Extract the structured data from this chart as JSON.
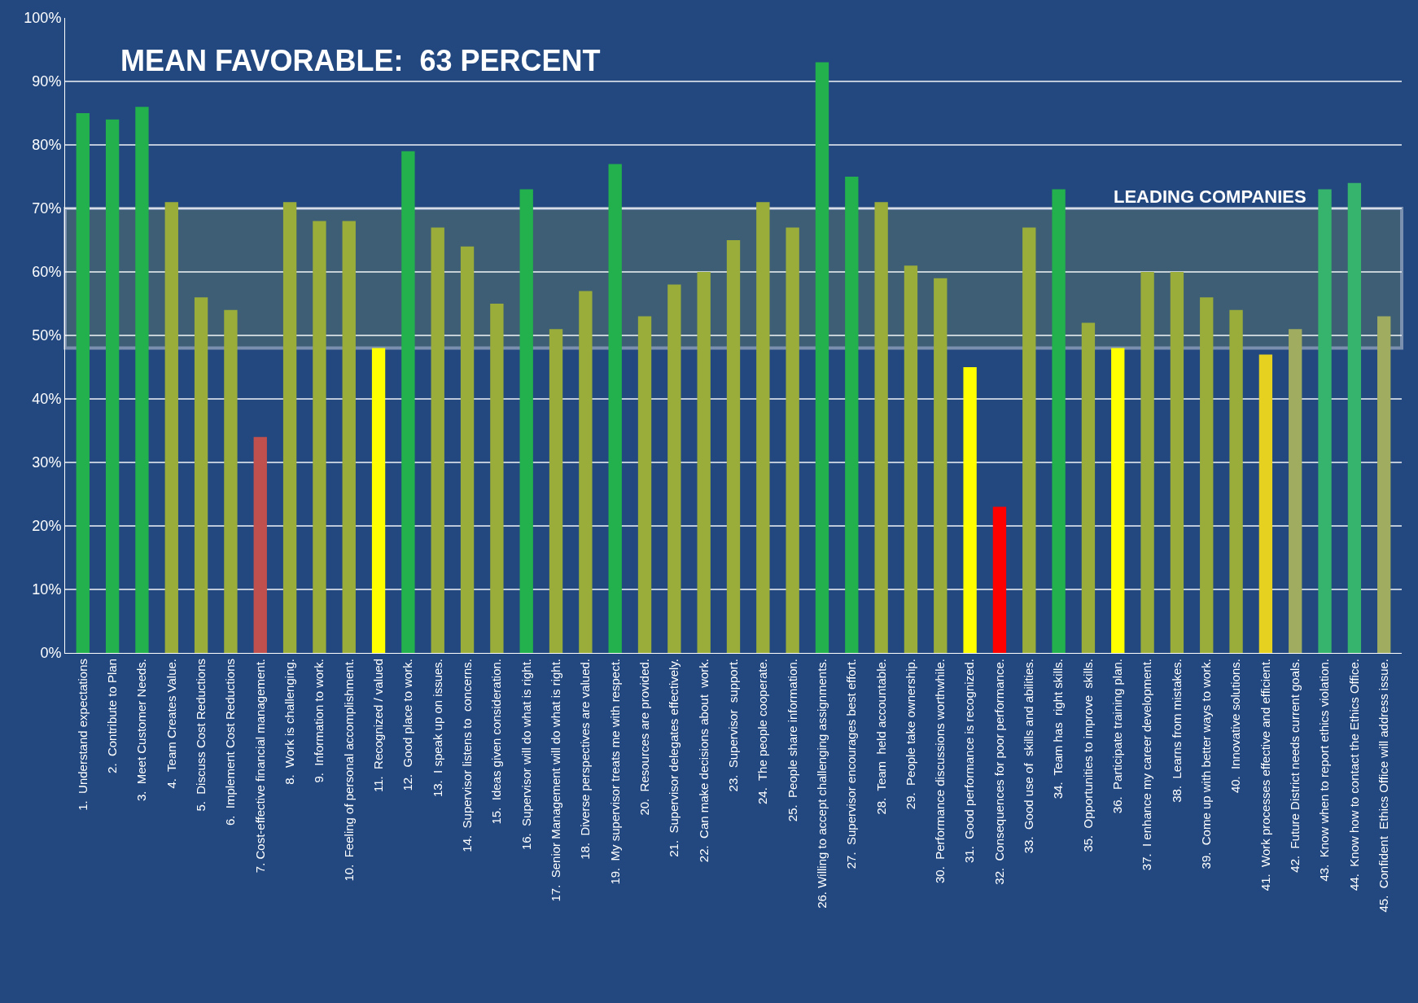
{
  "chart_data": {
    "type": "bar",
    "title": "MEAN FAVORABLE:  63 PERCENT",
    "categories": [
      "1.  Understand expectations",
      "2.  Contribute to Plan",
      "3.  Meet Customer Needs.",
      "4.  Team Creates Value.",
      "5.  Discuss Cost Reductions",
      "6.  Implement Cost Reductions",
      "7. Cost-effective financial management.",
      "8.  Work is challenging.",
      "9.  Information to work.",
      "10.  Feeling of personal accomplishment.",
      "11.  Recognized / valued",
      "12.  Good place to work.",
      "13.  I speak up on issues.",
      "14.  Supervisor listens to  concerns.",
      "15.  Ideas given consideration.",
      "16.  Supervisor will do what is right.",
      "17.  Senior Management will do what is right.",
      "18.  Diverse perspectives are valued.",
      "19.  My supervisor treats me with respect.",
      "20.  Resources are provided.",
      "21.  Supervisor delegates effectively.",
      "22.  Can make decisions about  work.",
      "23.  Supervisor  support.",
      "24.  The people cooperate.",
      "25.  People share information.",
      "26. Willing to accept challenging assignments.",
      "27.  Supervisor encourages best effort.",
      "28.  Team  held accountable.",
      "29.  People take ownership.",
      "30.  Performance discussions worthwhile.",
      "31.  Good performance is recognized.",
      "32.  Consequences for poor performance.",
      "33.  Good use of  skills and abilities.",
      "34.  Team has  right skills.",
      "35.  Opportunities to improve  skills.",
      "36.  Participate training plan.",
      "37.  I enhance my career development.",
      "38.  Learns from mistakes.",
      "39.  Come up with better ways to work.",
      "40.  Innovative solutions.",
      "41.  Work processes effective and efficient.",
      "42.  Future District needs current goals.",
      "43.  Know when to report ethics violation.",
      "44.  Know how to contact the Ethics Office.",
      "45.  Confident  Ethics Office will address issue."
    ],
    "values": [
      85,
      84,
      86,
      71,
      56,
      54,
      34,
      71,
      68,
      68,
      48,
      79,
      67,
      64,
      55,
      73,
      51,
      57,
      77,
      53,
      58,
      60,
      65,
      71,
      67,
      93,
      75,
      71,
      61,
      59,
      45,
      23,
      67,
      73,
      52,
      48,
      60,
      60,
      56,
      54,
      47,
      51,
      73,
      74,
      53
    ],
    "colors": [
      "#22b14c",
      "#22b14c",
      "#22b14c",
      "#9aad3a",
      "#9aad3a",
      "#9aad3a",
      "#c0504d",
      "#9aad3a",
      "#9aad3a",
      "#9aad3a",
      "#ffff00",
      "#22b14c",
      "#9aad3a",
      "#9aad3a",
      "#9aad3a",
      "#22b14c",
      "#9aad3a",
      "#9aad3a",
      "#22b14c",
      "#9aad3a",
      "#9aad3a",
      "#9aad3a",
      "#9aad3a",
      "#9aad3a",
      "#9aad3a",
      "#22b14c",
      "#22b14c",
      "#9aad3a",
      "#9aad3a",
      "#9aad3a",
      "#ffff00",
      "#ff0000",
      "#9aad3a",
      "#22b14c",
      "#9aad3a",
      "#ffff00",
      "#9aad3a",
      "#9aad3a",
      "#9aad3a",
      "#9aad3a",
      "#e6d020",
      "#a0ac60",
      "#36b36c",
      "#36b36c",
      "#a0ac60"
    ],
    "ylim": [
      0,
      100
    ],
    "yticks": [
      {
        "value": 0,
        "label": "0%"
      },
      {
        "value": 10,
        "label": "10%"
      },
      {
        "value": 20,
        "label": "20%"
      },
      {
        "value": 30,
        "label": "30%"
      },
      {
        "value": 40,
        "label": "40%"
      },
      {
        "value": 50,
        "label": "50%"
      },
      {
        "value": 60,
        "label": "60%"
      },
      {
        "value": 70,
        "label": "70%"
      },
      {
        "value": 80,
        "label": "80%"
      },
      {
        "value": 90,
        "label": "90%"
      },
      {
        "value": 100,
        "label": "100%"
      }
    ],
    "grid": "y",
    "bands": [
      {
        "axis": "y",
        "from": 48,
        "to": 70,
        "label": "LEADING COMPANIES",
        "color": "#5f7a6a"
      }
    ]
  }
}
